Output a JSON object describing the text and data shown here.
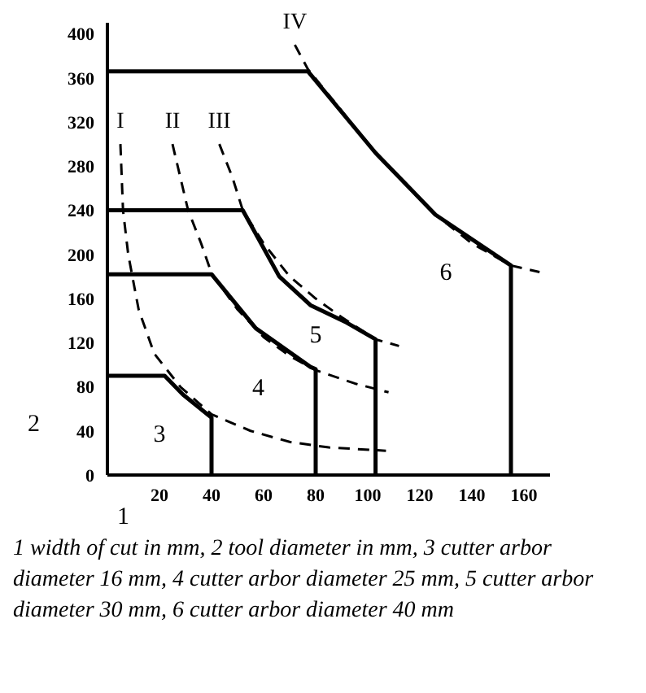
{
  "chart_data": {
    "type": "line",
    "xlabel": "1",
    "ylabel": "2",
    "xlim": [
      0,
      170
    ],
    "ylim": [
      0,
      410
    ],
    "xticks": [
      20,
      40,
      60,
      80,
      100,
      120,
      140,
      160
    ],
    "yticks": [
      0,
      40,
      80,
      120,
      160,
      200,
      240,
      280,
      320,
      360,
      400
    ],
    "grid": false,
    "series": [
      {
        "color": "#000000",
        "line_style": "solid",
        "x": [
          0,
          22,
          29,
          40,
          40
        ],
        "values": [
          90,
          90,
          73,
          52,
          0
        ]
      },
      {
        "color": "#000000",
        "line_style": "solid",
        "x": [
          0,
          40,
          57,
          78,
          80,
          80
        ],
        "values": [
          182,
          182,
          133,
          98,
          96,
          0
        ]
      },
      {
        "color": "#000000",
        "line_style": "solid",
        "x": [
          0,
          52,
          66,
          78,
          92,
          103,
          103
        ],
        "values": [
          240,
          240,
          180,
          154,
          138,
          123,
          0
        ]
      },
      {
        "color": "#000000",
        "line_style": "solid",
        "x": [
          0,
          77,
          103,
          126,
          155,
          155
        ],
        "values": [
          366,
          366,
          292,
          236,
          190,
          0
        ]
      },
      {
        "name": "I",
        "color": "#000000",
        "line_style": "dashed",
        "x": [
          5,
          6,
          8,
          12,
          18,
          28,
          40,
          55,
          70,
          85,
          107
        ],
        "values": [
          300,
          240,
          200,
          150,
          110,
          80,
          55,
          40,
          30,
          25,
          22
        ]
      },
      {
        "name": "II",
        "color": "#000000",
        "line_style": "dashed",
        "x": [
          25,
          28,
          31,
          36,
          40,
          50,
          60,
          70,
          80,
          95,
          108
        ],
        "values": [
          300,
          270,
          240,
          210,
          183,
          150,
          125,
          108,
          95,
          83,
          75
        ]
      },
      {
        "name": "III",
        "color": "#000000",
        "line_style": "dashed",
        "x": [
          43,
          48,
          52,
          60,
          70,
          80,
          90,
          103,
          112
        ],
        "values": [
          300,
          270,
          240,
          210,
          180,
          160,
          143,
          123,
          117
        ]
      },
      {
        "name": "IV",
        "color": "#000000",
        "line_style": "dashed",
        "x": [
          72,
          77,
          90,
          103,
          126,
          140,
          155,
          166
        ],
        "values": [
          390,
          368,
          330,
          292,
          236,
          210,
          190,
          184
        ]
      }
    ],
    "annotations": [
      "3",
      "4",
      "5",
      "6",
      "1 width of cut in mm, 2 tool diameter in mm, 3 cutter arbor diameter 16 mm, 4 cutter arbor diameter 25 mm, 5 cutter arbor diameter 30 mm, 6 cutter arbor diameter 40 mm"
    ]
  }
}
